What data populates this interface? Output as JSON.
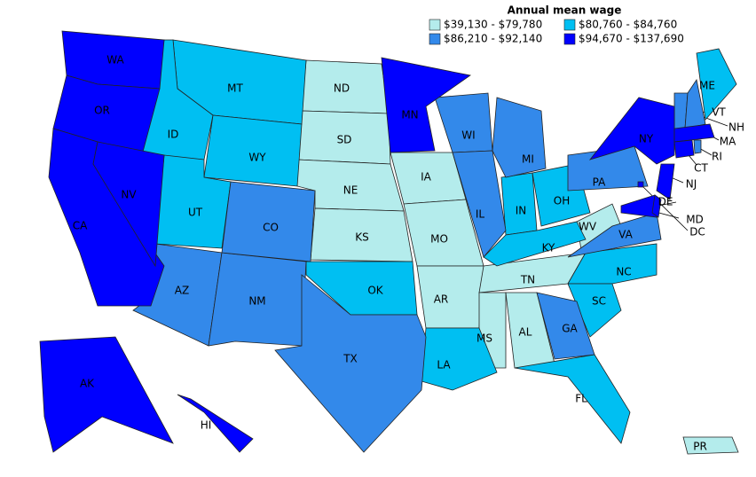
{
  "legend": {
    "title": "Annual mean wage",
    "items": [
      {
        "label": "$39,130 - $79,780",
        "color": "#b4ecec",
        "states": [
          "ND",
          "SD",
          "NE",
          "KS",
          "IA",
          "MO",
          "AR",
          "TN",
          "MS",
          "AL",
          "WV",
          "PR"
        ]
      },
      {
        "label": "$80,760 - $84,760",
        "color": "#00bff2",
        "states": [
          "MT",
          "ID",
          "WY",
          "UT",
          "OK",
          "IN",
          "OH",
          "KY",
          "LA",
          "NC",
          "SC",
          "FL",
          "ME"
        ]
      },
      {
        "label": "$86,210 - $92,140",
        "color": "#3389ea",
        "states": [
          "AZ",
          "NM",
          "CO",
          "TX",
          "WI",
          "MI",
          "IL",
          "PA",
          "GA",
          "VA",
          "VT",
          "NH",
          "RI"
        ]
      },
      {
        "label": "$94,670 - $137,690",
        "color": "#0000ff",
        "states": [
          "WA",
          "OR",
          "CA",
          "NV",
          "MN",
          "NY",
          "MA",
          "NJ",
          "CT",
          "MD",
          "DC",
          "DE",
          "AK",
          "HI"
        ]
      }
    ]
  }
}
